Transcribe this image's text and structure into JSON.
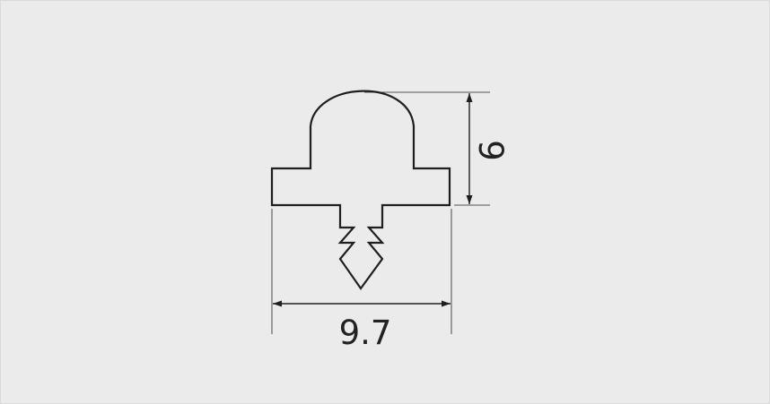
{
  "drawing": {
    "width_label": "9.7",
    "height_label": "6",
    "line_color": "#1f1f1f",
    "background": "#ebebeb"
  }
}
